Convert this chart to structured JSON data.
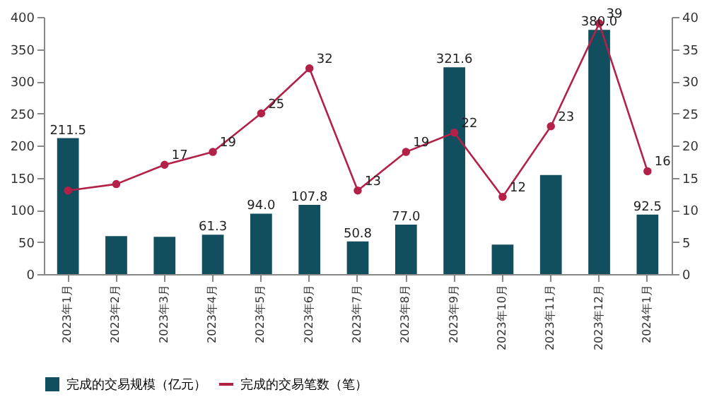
{
  "chart_data": {
    "type": "bar",
    "categories": [
      "2023年1月",
      "2023年2月",
      "2023年3月",
      "2023年4月",
      "2023年5月",
      "2023年6月",
      "2023年7月",
      "2023年8月",
      "2023年9月",
      "2023年10月",
      "2023年11月",
      "2023年12月",
      "2024年1月"
    ],
    "series": [
      {
        "name": "完成的交易规模（亿元）",
        "color": "#124f5e",
        "values": [
          211.5,
          59,
          58,
          61.3,
          94.0,
          107.8,
          50.8,
          77.0,
          321.6,
          46,
          154,
          380.0,
          92.5
        ],
        "value_labels": [
          "211.5",
          null,
          null,
          "61.3",
          "94.0",
          "107.8",
          "50.8",
          "77.0",
          "321.6",
          null,
          null,
          "380.0",
          "92.5"
        ]
      },
      {
        "name": "完成的交易笔数（笔）",
        "type": "line",
        "axis": "y2",
        "color": "#b32148",
        "values": [
          13,
          14,
          17,
          19,
          25,
          32,
          13,
          19,
          22,
          12,
          23,
          39,
          16
        ],
        "value_labels": [
          null,
          null,
          "17",
          "19",
          "25",
          "32",
          "13",
          "19",
          "22",
          "12",
          "23",
          "39",
          "16"
        ]
      }
    ],
    "ylim": [
      0,
      400
    ],
    "yticks": [
      0,
      50,
      100,
      150,
      200,
      250,
      300,
      350,
      400
    ],
    "y2lim": [
      0,
      40
    ],
    "y2ticks": [
      0,
      5,
      10,
      15,
      20,
      25,
      30,
      35,
      40
    ],
    "grid": false,
    "legend": "bottom",
    "marker": "circle",
    "line_style": "solid"
  }
}
